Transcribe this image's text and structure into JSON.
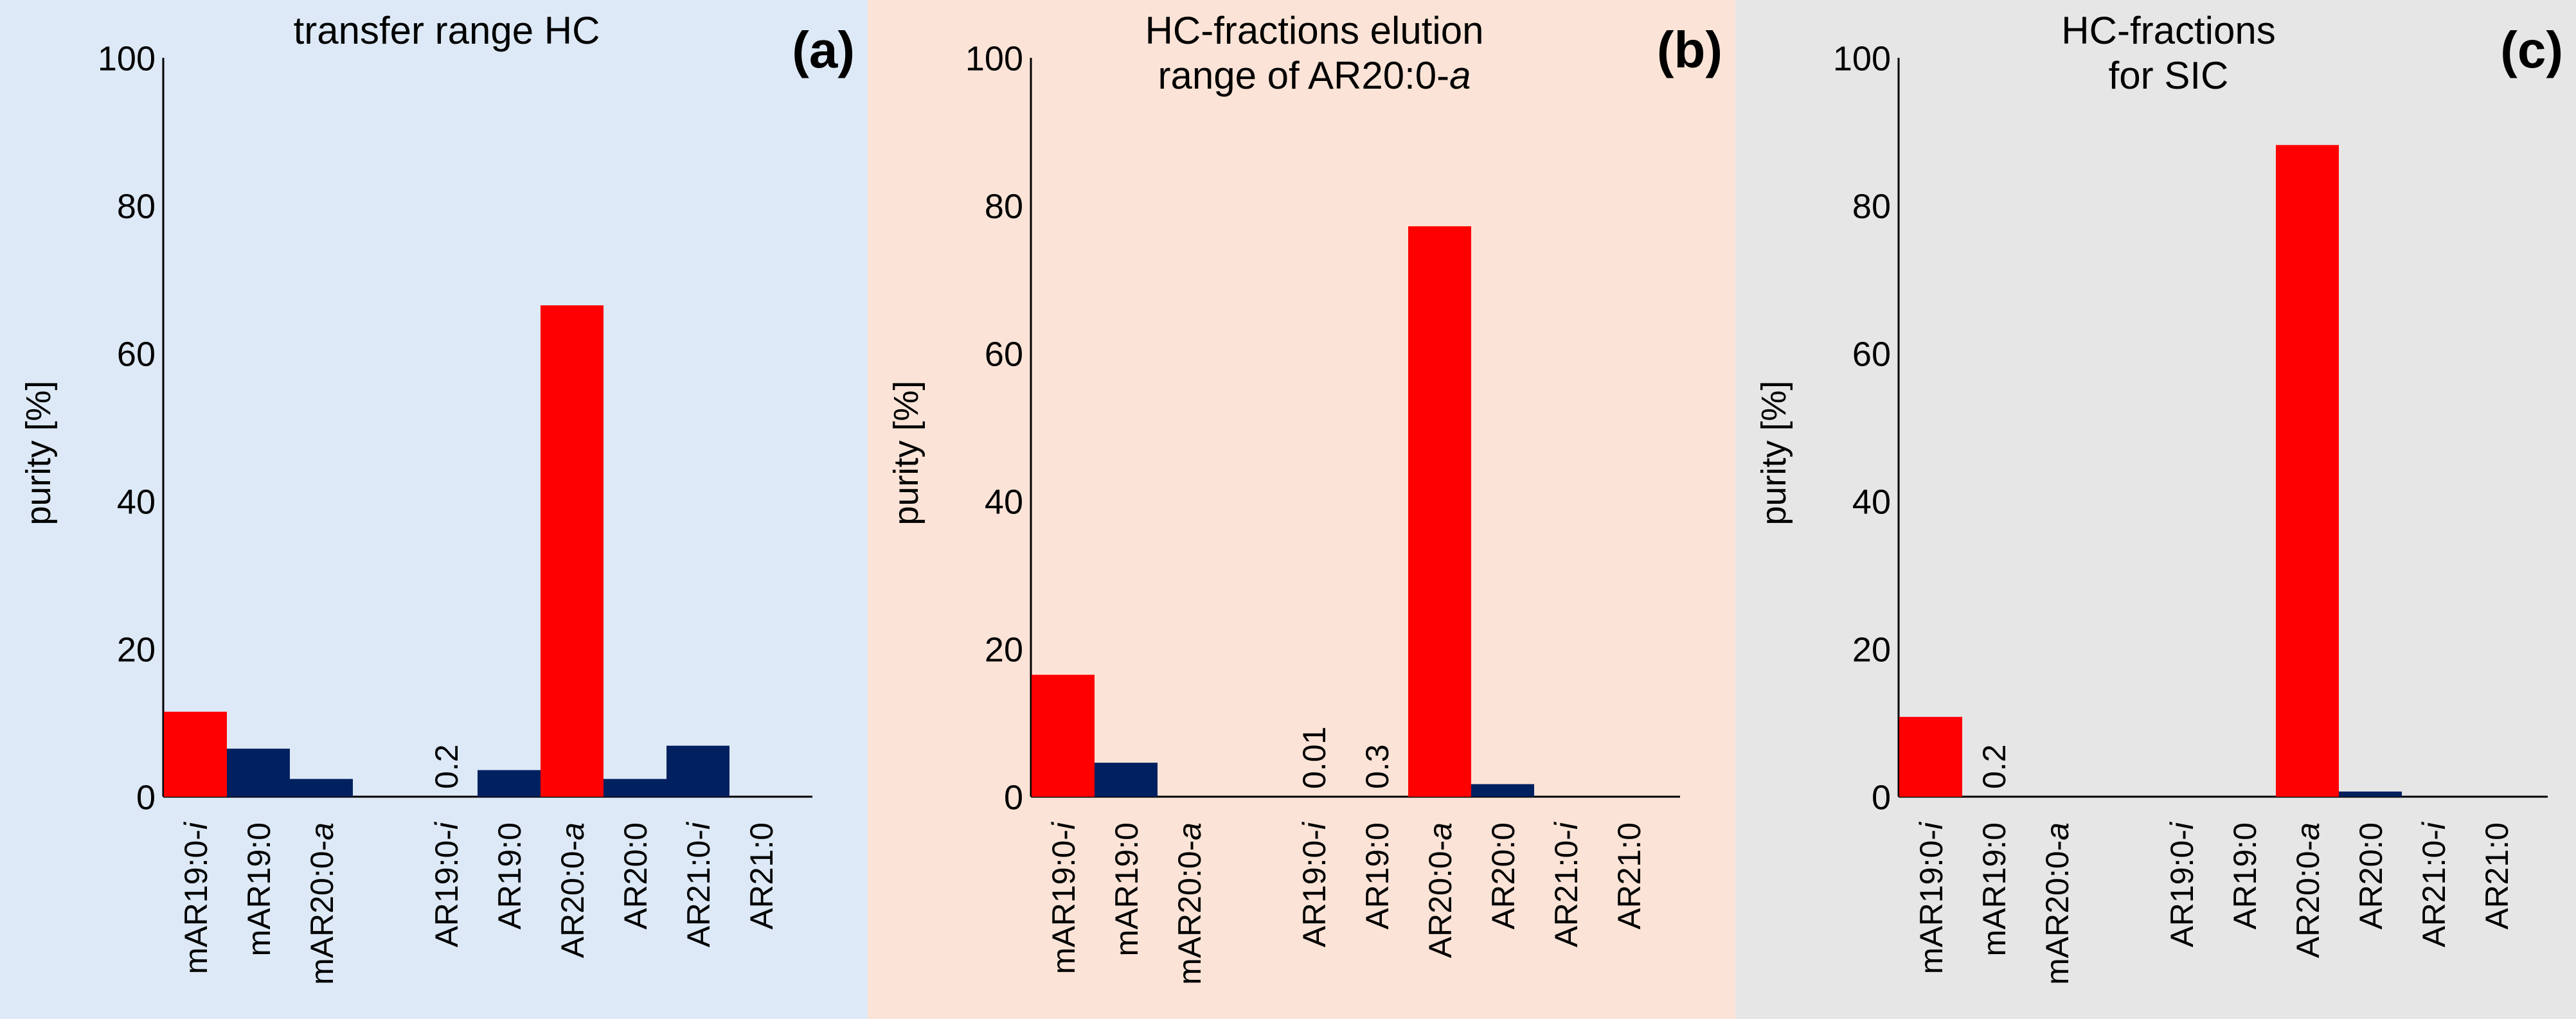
{
  "colors": {
    "highlight": "#ff0000",
    "default": "#002060",
    "panel_backgrounds": [
      "#dde9f6",
      "#fbe4d7",
      "#e6e6e6"
    ]
  },
  "axis": {
    "ylabel": "purity [%]",
    "ylim": [
      0,
      100
    ],
    "yticks": [
      "0",
      "20",
      "40",
      "60",
      "80",
      "100"
    ]
  },
  "chart_data": [
    {
      "type": "bar",
      "panel_label": "(a)",
      "title_lines": [
        "transfer range HC"
      ],
      "ylabel": "purity [%]",
      "ylim": [
        0,
        100
      ],
      "categories": [
        {
          "base": "mAR19:0",
          "suffix": "-i"
        },
        {
          "base": "mAR19:0",
          "suffix": ""
        },
        {
          "base": "mAR20:0",
          "suffix": "-a"
        },
        {
          "base": "AR19:0",
          "suffix": "-i"
        },
        {
          "base": "AR19:0",
          "suffix": ""
        },
        {
          "base": "AR20:0",
          "suffix": "-a"
        },
        {
          "base": "AR20:0",
          "suffix": ""
        },
        {
          "base": "AR21:0",
          "suffix": "-i"
        },
        {
          "base": "AR21:0",
          "suffix": ""
        }
      ],
      "values": [
        11.5,
        6.5,
        2.4,
        0.2,
        3.6,
        66.5,
        2.4,
        6.9,
        0
      ],
      "highlight": [
        true,
        false,
        false,
        false,
        false,
        true,
        false,
        false,
        false
      ],
      "value_labels": [
        null,
        null,
        null,
        "0.2",
        null,
        null,
        null,
        null,
        null
      ]
    },
    {
      "type": "bar",
      "panel_label": "(b)",
      "title_lines": [
        "HC-fractions elution",
        "range of AR20:0-"
      ],
      "title_italic_suffix": "a",
      "ylabel": "purity [%]",
      "ylim": [
        0,
        100
      ],
      "categories": [
        {
          "base": "mAR19:0",
          "suffix": "-i"
        },
        {
          "base": "mAR19:0",
          "suffix": ""
        },
        {
          "base": "mAR20:0",
          "suffix": "-a"
        },
        {
          "base": "AR19:0",
          "suffix": "-i"
        },
        {
          "base": "AR19:0",
          "suffix": ""
        },
        {
          "base": "AR20:0",
          "suffix": "-a"
        },
        {
          "base": "AR20:0",
          "suffix": ""
        },
        {
          "base": "AR21:0",
          "suffix": "-i"
        },
        {
          "base": "AR21:0",
          "suffix": ""
        }
      ],
      "values": [
        16.5,
        4.6,
        0,
        0.01,
        0.3,
        77.2,
        1.7,
        0,
        0
      ],
      "highlight": [
        true,
        false,
        false,
        false,
        false,
        true,
        false,
        false,
        false
      ],
      "value_labels": [
        null,
        null,
        null,
        "0.01",
        "0.3",
        null,
        null,
        null,
        null
      ]
    },
    {
      "type": "bar",
      "panel_label": "(c)",
      "title_lines": [
        "HC-fractions",
        "for SIC"
      ],
      "ylabel": "purity [%]",
      "ylim": [
        0,
        100
      ],
      "categories": [
        {
          "base": "mAR19:0",
          "suffix": "-i"
        },
        {
          "base": "mAR19:0",
          "suffix": ""
        },
        {
          "base": "mAR20:0",
          "suffix": "-a"
        },
        {
          "base": "AR19:0",
          "suffix": "-i"
        },
        {
          "base": "AR19:0",
          "suffix": ""
        },
        {
          "base": "AR20:0",
          "suffix": "-a"
        },
        {
          "base": "AR20:0",
          "suffix": ""
        },
        {
          "base": "AR21:0",
          "suffix": "-i"
        },
        {
          "base": "AR21:0",
          "suffix": ""
        }
      ],
      "values": [
        10.8,
        0.2,
        0,
        0,
        0,
        88.2,
        0.7,
        0,
        0
      ],
      "highlight": [
        true,
        false,
        false,
        false,
        false,
        true,
        false,
        false,
        false
      ],
      "value_labels": [
        null,
        "0.2",
        null,
        null,
        null,
        null,
        null,
        null,
        null
      ]
    }
  ]
}
